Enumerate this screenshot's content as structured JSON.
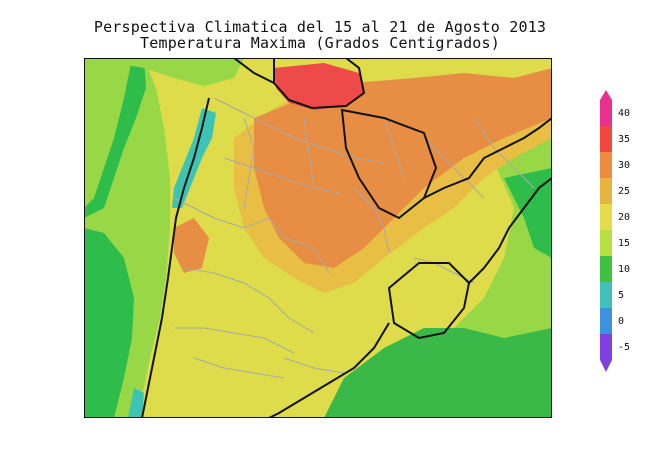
{
  "title": {
    "line1": "Perspectiva Climatica del 15 al 21 de Agosto 2013",
    "line2": "Temperatura Maxima (Grados Centigrados)"
  },
  "colorbar": {
    "ticks": [
      "40",
      "35",
      "30",
      "25",
      "20",
      "15",
      "10",
      "5",
      "0",
      "-5"
    ],
    "colors": [
      "#e8308c",
      "#f0483c",
      "#ec8c3c",
      "#e8b440",
      "#e4dc48",
      "#b8e040",
      "#40c040",
      "#40c0b8",
      "#4090e0",
      "#8040e0"
    ]
  },
  "map_palette": {
    "green_dark": "#2ebd4a",
    "green_light": "#98d846",
    "yellow": "#dedc4a",
    "yellow_orange": "#e8bf44",
    "orange": "#e88e44",
    "red": "#ef4a4a",
    "cyan": "#3ec4b4",
    "ocean_green": "#3ab948",
    "border": "#a8a8a8",
    "country_border": "#111111"
  }
}
